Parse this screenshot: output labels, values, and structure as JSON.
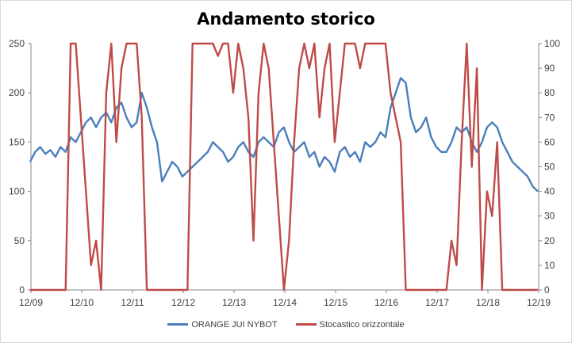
{
  "colors": {
    "price": "#4a7ebb",
    "stochastic": "#be4b48",
    "axis": "#868686",
    "tick": "#404040"
  },
  "chart_data": {
    "type": "line",
    "title": "Andamento storico",
    "x_ticks": [
      "12/09",
      "12/10",
      "12/11",
      "12/12",
      "12/13",
      "12/14",
      "12/15",
      "12/16",
      "12/17",
      "12/18",
      "12/19"
    ],
    "y_left": {
      "ylim": [
        0,
        250
      ],
      "ticks": [
        0,
        50,
        100,
        150,
        200,
        250
      ]
    },
    "y_right": {
      "ylim": [
        0,
        100
      ],
      "ticks": [
        0,
        10,
        20,
        30,
        40,
        50,
        60,
        70,
        80,
        90,
        100
      ]
    },
    "legend_position": "bottom",
    "series": [
      {
        "name": "ORANGE JUI NYBOT",
        "axis": "left",
        "x": [
          2009.9,
          2010.0,
          2010.1,
          2010.2,
          2010.3,
          2010.4,
          2010.5,
          2010.6,
          2010.7,
          2010.8,
          2010.9,
          2011.0,
          2011.1,
          2011.2,
          2011.3,
          2011.4,
          2011.5,
          2011.6,
          2011.7,
          2011.8,
          2011.9,
          2012.0,
          2012.1,
          2012.2,
          2012.3,
          2012.4,
          2012.5,
          2012.6,
          2012.7,
          2012.8,
          2012.9,
          2013.0,
          2013.1,
          2013.2,
          2013.3,
          2013.4,
          2013.5,
          2013.6,
          2013.7,
          2013.8,
          2013.9,
          2014.0,
          2014.1,
          2014.2,
          2014.3,
          2014.4,
          2014.5,
          2014.6,
          2014.7,
          2014.8,
          2014.9,
          2015.0,
          2015.1,
          2015.2,
          2015.3,
          2015.4,
          2015.5,
          2015.6,
          2015.7,
          2015.8,
          2015.9,
          2016.0,
          2016.1,
          2016.2,
          2016.3,
          2016.4,
          2016.5,
          2016.6,
          2016.7,
          2016.8,
          2016.9,
          2017.0,
          2017.1,
          2017.2,
          2017.3,
          2017.4,
          2017.5,
          2017.6,
          2017.7,
          2017.8,
          2017.9,
          2018.0,
          2018.1,
          2018.2,
          2018.3,
          2018.4,
          2018.5,
          2018.6,
          2018.7,
          2018.8,
          2018.9,
          2019.0,
          2019.1,
          2019.2,
          2019.3,
          2019.4,
          2019.5,
          2019.6,
          2019.7,
          2019.8,
          2019.9
        ],
        "values": [
          130,
          140,
          145,
          138,
          142,
          135,
          145,
          140,
          155,
          150,
          160,
          170,
          175,
          165,
          175,
          180,
          170,
          185,
          190,
          175,
          165,
          170,
          200,
          185,
          165,
          150,
          110,
          120,
          130,
          125,
          115,
          120,
          125,
          130,
          135,
          140,
          150,
          145,
          140,
          130,
          135,
          145,
          150,
          140,
          135,
          150,
          155,
          150,
          145,
          160,
          165,
          150,
          140,
          145,
          150,
          135,
          140,
          125,
          135,
          130,
          120,
          140,
          145,
          135,
          140,
          130,
          150,
          145,
          150,
          160,
          155,
          185,
          200,
          215,
          210,
          175,
          160,
          165,
          175,
          155,
          145,
          140,
          140,
          150,
          165,
          160,
          165,
          150,
          140,
          150,
          165,
          170,
          165,
          150,
          140,
          130,
          125,
          120,
          115,
          105,
          100
        ],
        "note_skip": true
      },
      {
        "name": "Stocastico orizzontale",
        "axis": "right",
        "x": [
          2009.9,
          2010.0,
          2010.1,
          2010.2,
          2010.3,
          2010.4,
          2010.5,
          2010.6,
          2010.7,
          2010.8,
          2010.9,
          2011.0,
          2011.1,
          2011.2,
          2011.3,
          2011.4,
          2011.5,
          2011.6,
          2011.7,
          2011.8,
          2011.9,
          2012.0,
          2012.1,
          2012.2,
          2012.3,
          2012.4,
          2012.5,
          2012.6,
          2012.7,
          2012.8,
          2012.9,
          2013.0,
          2013.1,
          2013.2,
          2013.3,
          2013.4,
          2013.5,
          2013.6,
          2013.7,
          2013.8,
          2013.9,
          2014.0,
          2014.1,
          2014.2,
          2014.3,
          2014.4,
          2014.5,
          2014.6,
          2014.7,
          2014.8,
          2014.9,
          2015.0,
          2015.1,
          2015.2,
          2015.3,
          2015.4,
          2015.5,
          2015.6,
          2015.7,
          2015.8,
          2015.9,
          2016.0,
          2016.1,
          2016.2,
          2016.3,
          2016.4,
          2016.5,
          2016.6,
          2016.7,
          2016.8,
          2016.9,
          2017.0,
          2017.1,
          2017.2,
          2017.3,
          2017.4,
          2017.5,
          2017.6,
          2017.7,
          2017.8,
          2017.9,
          2018.0,
          2018.1,
          2018.2,
          2018.3,
          2018.4,
          2018.5,
          2018.6,
          2018.7,
          2018.8,
          2018.9,
          2019.0,
          2019.1,
          2019.2,
          2019.3,
          2019.4,
          2019.5,
          2019.6,
          2019.7,
          2019.8,
          2019.9
        ],
        "values": [
          0,
          0,
          0,
          0,
          0,
          0,
          0,
          0,
          100,
          100,
          70,
          40,
          10,
          20,
          0,
          80,
          100,
          60,
          90,
          100,
          100,
          100,
          70,
          0,
          0,
          0,
          0,
          0,
          0,
          0,
          0,
          0,
          100,
          100,
          100,
          100,
          100,
          95,
          100,
          100,
          80,
          100,
          90,
          70,
          20,
          80,
          100,
          90,
          60,
          30,
          0,
          20,
          60,
          90,
          100,
          90,
          100,
          70,
          90,
          100,
          60,
          80,
          100,
          100,
          100,
          90,
          100,
          100,
          100,
          100,
          100,
          80,
          70,
          60,
          0,
          0,
          0,
          0,
          0,
          0,
          0,
          0,
          0,
          20,
          10,
          60,
          100,
          50,
          90,
          0,
          40,
          30,
          60,
          0,
          0,
          0,
          0,
          0,
          0,
          0,
          0
        ],
        "note_skip": true
      }
    ]
  }
}
